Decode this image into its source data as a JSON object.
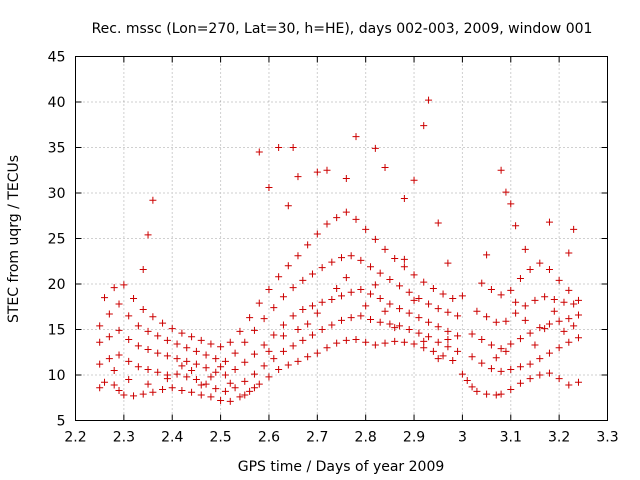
{
  "chart_data": {
    "type": "scatter",
    "title": "Rec. mssc (Lon=270, Lat=30, h=HE), days 002-003, 2009, window 001",
    "xlabel": "GPS time / Days of year 2009",
    "ylabel": "STEC from uqrg / TECUs",
    "xlim": [
      2.2,
      3.3
    ],
    "ylim": [
      5,
      45
    ],
    "xticks": [
      "2.2",
      "2.3",
      "2.4",
      "2.5",
      "2.6",
      "2.7",
      "2.8",
      "2.9",
      "3",
      "3.1",
      "3.2",
      "3.3"
    ],
    "yticks": [
      "5",
      "10",
      "15",
      "20",
      "25",
      "30",
      "35",
      "40",
      "45"
    ],
    "grid": true,
    "marker": "plus",
    "color": "#cc0000",
    "series": [
      {
        "points": [
          [
            2.25,
            8.6
          ],
          [
            2.26,
            9.2
          ],
          [
            2.28,
            8.9
          ],
          [
            2.29,
            8.3
          ],
          [
            2.3,
            7.8
          ],
          [
            2.32,
            7.7
          ],
          [
            2.34,
            7.9
          ],
          [
            2.36,
            8.1
          ],
          [
            2.38,
            8.4
          ],
          [
            2.4,
            8.6
          ],
          [
            2.42,
            8.3
          ],
          [
            2.44,
            8.1
          ],
          [
            2.46,
            7.8
          ],
          [
            2.48,
            7.6
          ],
          [
            2.5,
            7.2
          ],
          [
            2.52,
            7.1
          ],
          [
            2.54,
            7.6
          ],
          [
            2.56,
            8.2
          ],
          [
            2.58,
            9.0
          ],
          [
            2.6,
            9.8
          ],
          [
            2.62,
            10.6
          ],
          [
            2.64,
            11.1
          ],
          [
            2.66,
            11.5
          ],
          [
            2.68,
            12.0
          ],
          [
            2.7,
            12.4
          ],
          [
            2.72,
            13.0
          ],
          [
            2.74,
            13.5
          ],
          [
            2.76,
            13.8
          ],
          [
            2.78,
            13.9
          ],
          [
            2.8,
            13.6
          ],
          [
            2.82,
            13.3
          ],
          [
            2.84,
            13.5
          ],
          [
            2.86,
            13.7
          ],
          [
            2.88,
            13.6
          ],
          [
            2.9,
            13.4
          ],
          [
            2.92,
            13.0
          ],
          [
            2.94,
            12.6
          ],
          [
            2.96,
            12.1
          ],
          [
            2.98,
            11.6
          ],
          [
            3.0,
            10.1
          ],
          [
            3.01,
            9.4
          ],
          [
            3.02,
            8.7
          ],
          [
            3.03,
            8.2
          ],
          [
            3.05,
            7.9
          ],
          [
            3.07,
            7.8
          ],
          [
            3.08,
            7.9
          ],
          [
            3.1,
            8.4
          ],
          [
            3.12,
            9.1
          ],
          [
            3.14,
            9.6
          ],
          [
            3.16,
            10.0
          ],
          [
            3.18,
            10.2
          ],
          [
            3.2,
            9.6
          ],
          [
            3.22,
            8.9
          ],
          [
            3.24,
            9.2
          ],
          [
            2.25,
            11.2
          ],
          [
            2.27,
            11.8
          ],
          [
            2.29,
            12.2
          ],
          [
            2.31,
            11.5
          ],
          [
            2.33,
            10.9
          ],
          [
            2.35,
            10.6
          ],
          [
            2.37,
            10.3
          ],
          [
            2.39,
            10.0
          ],
          [
            2.41,
            10.1
          ],
          [
            2.43,
            9.8
          ],
          [
            2.45,
            9.5
          ],
          [
            2.47,
            9.0
          ],
          [
            2.49,
            8.5
          ],
          [
            2.51,
            8.2
          ],
          [
            2.53,
            8.6
          ],
          [
            2.55,
            9.3
          ],
          [
            2.57,
            10.1
          ],
          [
            2.59,
            11.0
          ],
          [
            2.61,
            11.8
          ],
          [
            2.63,
            12.6
          ],
          [
            2.65,
            13.2
          ],
          [
            2.67,
            13.8
          ],
          [
            2.69,
            14.4
          ],
          [
            2.71,
            15.0
          ],
          [
            2.73,
            15.5
          ],
          [
            2.75,
            16.0
          ],
          [
            2.77,
            16.3
          ],
          [
            2.79,
            16.5
          ],
          [
            2.81,
            16.1
          ],
          [
            2.83,
            15.8
          ],
          [
            2.85,
            15.6
          ],
          [
            2.87,
            15.4
          ],
          [
            2.89,
            15.0
          ],
          [
            2.91,
            14.6
          ],
          [
            2.93,
            14.2
          ],
          [
            2.95,
            13.6
          ],
          [
            2.97,
            13.1
          ],
          [
            2.99,
            12.6
          ],
          [
            3.02,
            12.0
          ],
          [
            3.04,
            11.3
          ],
          [
            3.06,
            10.7
          ],
          [
            3.08,
            10.4
          ],
          [
            3.1,
            10.6
          ],
          [
            3.12,
            10.9
          ],
          [
            3.14,
            11.2
          ],
          [
            3.16,
            11.8
          ],
          [
            3.18,
            12.4
          ],
          [
            3.2,
            13.0
          ],
          [
            3.22,
            13.6
          ],
          [
            3.24,
            14.1
          ],
          [
            2.25,
            13.6
          ],
          [
            2.27,
            14.2
          ],
          [
            2.29,
            14.9
          ],
          [
            2.31,
            13.9
          ],
          [
            2.33,
            13.2
          ],
          [
            2.35,
            12.8
          ],
          [
            2.37,
            12.4
          ],
          [
            2.39,
            12.1
          ],
          [
            2.41,
            11.8
          ],
          [
            2.43,
            11.5
          ],
          [
            2.45,
            11.2
          ],
          [
            2.47,
            10.8
          ],
          [
            2.49,
            10.3
          ],
          [
            2.51,
            10.0
          ],
          [
            2.53,
            10.6
          ],
          [
            2.55,
            11.4
          ],
          [
            2.57,
            12.3
          ],
          [
            2.59,
            13.3
          ],
          [
            2.61,
            14.4
          ],
          [
            2.63,
            15.5
          ],
          [
            2.65,
            16.5
          ],
          [
            2.67,
            17.2
          ],
          [
            2.69,
            17.6
          ],
          [
            2.71,
            18.0
          ],
          [
            2.73,
            18.3
          ],
          [
            2.75,
            18.7
          ],
          [
            2.77,
            19.1
          ],
          [
            2.79,
            19.4
          ],
          [
            2.81,
            18.9
          ],
          [
            2.83,
            18.4
          ],
          [
            2.85,
            17.8
          ],
          [
            2.87,
            17.3
          ],
          [
            2.89,
            16.8
          ],
          [
            2.91,
            16.3
          ],
          [
            2.93,
            15.8
          ],
          [
            2.95,
            15.3
          ],
          [
            2.97,
            14.8
          ],
          [
            2.99,
            14.3
          ],
          [
            3.02,
            14.5
          ],
          [
            3.04,
            13.9
          ],
          [
            3.06,
            13.3
          ],
          [
            3.08,
            12.9
          ],
          [
            3.1,
            13.4
          ],
          [
            3.12,
            14.0
          ],
          [
            3.14,
            14.6
          ],
          [
            3.16,
            15.2
          ],
          [
            3.18,
            15.6
          ],
          [
            3.2,
            15.9
          ],
          [
            3.22,
            16.2
          ],
          [
            3.24,
            16.6
          ],
          [
            2.25,
            15.4
          ],
          [
            2.27,
            16.7
          ],
          [
            2.29,
            17.8
          ],
          [
            2.31,
            16.5
          ],
          [
            2.33,
            15.4
          ],
          [
            2.35,
            14.8
          ],
          [
            2.37,
            14.3
          ],
          [
            2.39,
            13.8
          ],
          [
            2.41,
            13.4
          ],
          [
            2.43,
            13.0
          ],
          [
            2.45,
            12.6
          ],
          [
            2.47,
            12.2
          ],
          [
            2.49,
            11.8
          ],
          [
            2.51,
            11.5
          ],
          [
            2.53,
            12.4
          ],
          [
            2.55,
            13.6
          ],
          [
            2.57,
            14.9
          ],
          [
            2.59,
            16.2
          ],
          [
            2.61,
            17.4
          ],
          [
            2.63,
            18.6
          ],
          [
            2.65,
            19.6
          ],
          [
            2.67,
            20.4
          ],
          [
            2.69,
            21.1
          ],
          [
            2.71,
            21.8
          ],
          [
            2.73,
            22.4
          ],
          [
            2.75,
            22.9
          ],
          [
            2.77,
            23.1
          ],
          [
            2.79,
            22.6
          ],
          [
            2.81,
            21.9
          ],
          [
            2.83,
            21.2
          ],
          [
            2.85,
            20.5
          ],
          [
            2.87,
            19.8
          ],
          [
            2.89,
            19.1
          ],
          [
            2.91,
            18.4
          ],
          [
            2.93,
            17.8
          ],
          [
            2.95,
            17.3
          ],
          [
            2.97,
            16.9
          ],
          [
            2.99,
            16.5
          ],
          [
            3.03,
            17.0
          ],
          [
            3.05,
            16.4
          ],
          [
            3.07,
            15.8
          ],
          [
            3.09,
            15.9
          ],
          [
            3.11,
            16.8
          ],
          [
            3.13,
            17.6
          ],
          [
            3.15,
            18.2
          ],
          [
            3.17,
            18.6
          ],
          [
            3.19,
            18.3
          ],
          [
            3.21,
            18.0
          ],
          [
            3.23,
            17.8
          ],
          [
            2.26,
            18.5
          ],
          [
            2.28,
            19.6
          ],
          [
            2.3,
            19.9
          ],
          [
            2.32,
            18.4
          ],
          [
            2.34,
            17.2
          ],
          [
            2.36,
            16.4
          ],
          [
            2.38,
            15.7
          ],
          [
            2.4,
            15.1
          ],
          [
            2.42,
            14.6
          ],
          [
            2.44,
            14.2
          ],
          [
            2.46,
            13.8
          ],
          [
            2.48,
            13.4
          ],
          [
            2.5,
            13.1
          ],
          [
            2.52,
            13.6
          ],
          [
            2.54,
            14.8
          ],
          [
            2.56,
            16.3
          ],
          [
            2.58,
            17.9
          ],
          [
            2.6,
            19.4
          ],
          [
            2.62,
            20.8
          ],
          [
            2.64,
            22.0
          ],
          [
            2.66,
            23.1
          ],
          [
            2.68,
            24.3
          ],
          [
            2.7,
            25.5
          ],
          [
            2.72,
            26.6
          ],
          [
            2.74,
            27.3
          ],
          [
            2.76,
            27.9
          ],
          [
            2.78,
            27.1
          ],
          [
            2.8,
            26.0
          ],
          [
            2.82,
            24.9
          ],
          [
            2.84,
            23.8
          ],
          [
            2.86,
            22.8
          ],
          [
            2.88,
            21.9
          ],
          [
            2.9,
            21.0
          ],
          [
            2.92,
            20.2
          ],
          [
            2.94,
            19.5
          ],
          [
            2.96,
            18.9
          ],
          [
            2.98,
            18.4
          ],
          [
            3.04,
            20.1
          ],
          [
            3.06,
            19.4
          ],
          [
            3.08,
            18.8
          ],
          [
            3.1,
            19.3
          ],
          [
            3.12,
            20.6
          ],
          [
            3.14,
            21.6
          ],
          [
            3.16,
            22.3
          ],
          [
            3.18,
            21.6
          ],
          [
            3.2,
            20.4
          ],
          [
            3.22,
            19.3
          ],
          [
            3.24,
            18.2
          ],
          [
            2.34,
            21.6
          ],
          [
            2.35,
            25.4
          ],
          [
            2.36,
            29.2
          ],
          [
            2.58,
            34.5
          ],
          [
            2.6,
            30.6
          ],
          [
            2.62,
            35.0
          ],
          [
            2.64,
            28.6
          ],
          [
            2.65,
            35.0
          ],
          [
            2.66,
            31.8
          ],
          [
            2.7,
            32.3
          ],
          [
            2.72,
            32.5
          ],
          [
            2.76,
            31.6
          ],
          [
            2.78,
            36.2
          ],
          [
            2.82,
            34.9
          ],
          [
            2.84,
            32.8
          ],
          [
            2.88,
            29.4
          ],
          [
            2.9,
            31.4
          ],
          [
            2.92,
            37.4
          ],
          [
            2.93,
            40.2
          ],
          [
            2.95,
            26.7
          ],
          [
            2.97,
            22.3
          ],
          [
            3.08,
            32.5
          ],
          [
            3.09,
            30.1
          ],
          [
            3.1,
            28.8
          ],
          [
            3.11,
            26.4
          ],
          [
            3.13,
            23.8
          ],
          [
            3.18,
            26.8
          ],
          [
            3.22,
            23.4
          ],
          [
            3.23,
            26.0
          ],
          [
            2.28,
            10.5
          ],
          [
            2.31,
            9.5
          ],
          [
            2.35,
            9.0
          ],
          [
            2.39,
            9.6
          ],
          [
            2.42,
            11.0
          ],
          [
            2.44,
            10.5
          ],
          [
            2.46,
            8.9
          ],
          [
            2.48,
            9.8
          ],
          [
            2.5,
            10.9
          ],
          [
            2.52,
            9.1
          ],
          [
            2.55,
            7.8
          ],
          [
            2.57,
            8.6
          ],
          [
            2.6,
            12.6
          ],
          [
            2.63,
            14.3
          ],
          [
            2.66,
            15.0
          ],
          [
            2.68,
            15.6
          ],
          [
            2.7,
            16.8
          ],
          [
            2.74,
            19.5
          ],
          [
            2.76,
            20.7
          ],
          [
            2.8,
            17.6
          ],
          [
            2.82,
            19.9
          ],
          [
            2.84,
            17.0
          ],
          [
            2.86,
            15.2
          ],
          [
            2.88,
            22.7
          ],
          [
            2.9,
            18.2
          ],
          [
            2.92,
            13.7
          ],
          [
            2.95,
            11.8
          ],
          [
            2.97,
            13.9
          ],
          [
            3.0,
            18.7
          ],
          [
            3.05,
            23.2
          ],
          [
            3.07,
            11.9
          ],
          [
            3.09,
            12.6
          ],
          [
            3.11,
            18.0
          ],
          [
            3.13,
            16.0
          ],
          [
            3.15,
            13.3
          ],
          [
            3.17,
            15.1
          ],
          [
            3.19,
            17.0
          ],
          [
            3.21,
            14.8
          ],
          [
            3.23,
            15.4
          ]
        ]
      }
    ]
  }
}
